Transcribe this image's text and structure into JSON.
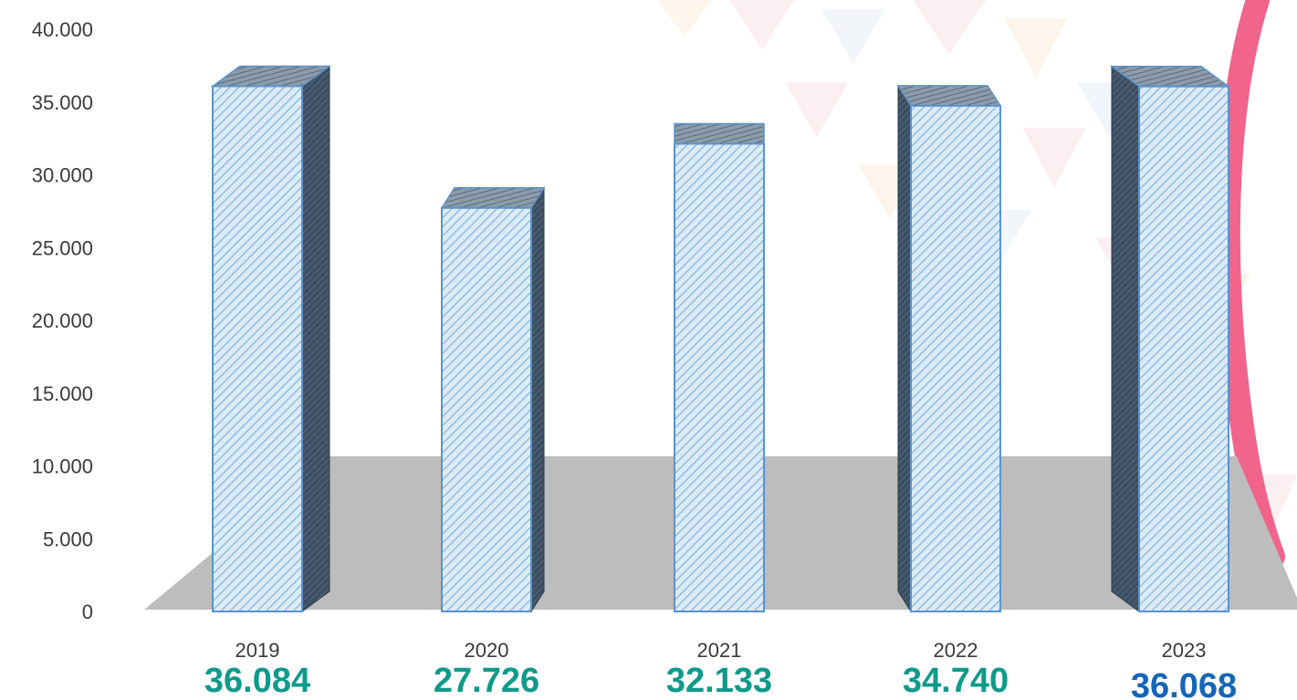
{
  "chart_data": {
    "type": "bar",
    "style": "3d-column",
    "categories": [
      "2019",
      "2020",
      "2021",
      "2022",
      "2023"
    ],
    "values": [
      36084,
      27726,
      32133,
      34740,
      36068
    ],
    "value_labels": [
      "36.084",
      "27.726",
      "32.133",
      "34.740",
      "36.068"
    ],
    "value_label_colors": [
      "#0e9a8a",
      "#0e9a8a",
      "#0e9a8a",
      "#0e9a8a",
      "#1565b8"
    ],
    "y_ticks": [
      "0",
      "5.000",
      "10.000",
      "15.000",
      "20.000",
      "25.000",
      "30.000",
      "35.000",
      "40.000"
    ],
    "ylim": [
      0,
      40000
    ],
    "title": "",
    "xlabel": "",
    "ylabel": "",
    "grid": false,
    "legend": "none",
    "colors": {
      "bar_face": "#dcebf8",
      "bar_hatch": "#7fb2df",
      "bar_outline": "#5b93cc",
      "bar_side": "#3c4f62",
      "floor": "#bdbdbd",
      "decor_ring": "#f0537f"
    }
  }
}
